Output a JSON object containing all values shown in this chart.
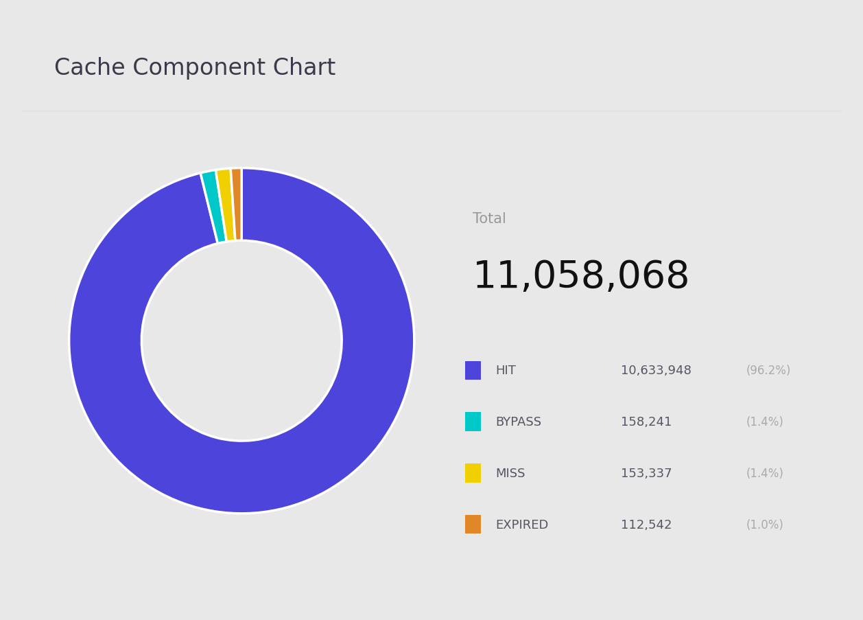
{
  "title": "Cache Component Chart",
  "title_color": "#3a3a4a",
  "total_label": "Total",
  "total_value": "11,058,068",
  "labels": [
    "HIT",
    "BYPASS",
    "MISS",
    "EXPIRED"
  ],
  "values": [
    10633948,
    158241,
    153337,
    112542
  ],
  "percentages": [
    "96.2%",
    "1.4%",
    "1.4%",
    "1.0%"
  ],
  "counts_formatted": [
    "10,633,948",
    "158,241",
    "153,337",
    "112,542"
  ],
  "colors": [
    "#4d44db",
    "#00c8c8",
    "#f0d000",
    "#e08828"
  ],
  "bg_outer": "#e8e8e8",
  "bg_card": "#ffffff",
  "legend_label_color": "#555566",
  "legend_count_color": "#555566",
  "legend_pct_color": "#aaaaaa",
  "total_label_color": "#999999",
  "total_value_color": "#111111",
  "separator_color": "#e0e0e0"
}
